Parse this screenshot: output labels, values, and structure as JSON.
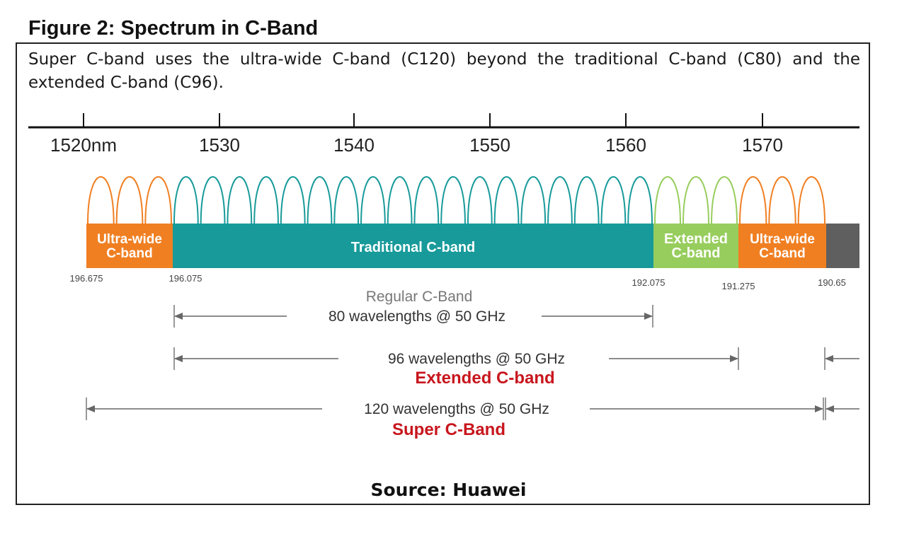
{
  "figure": {
    "title": "Figure 2: Spectrum in C-Band",
    "caption": "Super C-band uses the ultra-wide C-band (C120) beyond the traditional C-band (C80) and the extended C-band (C96).",
    "source": "Source: Huawei"
  },
  "colors": {
    "ultra_wide": "#f07f22",
    "traditional": "#189a9a",
    "extended": "#97cd5d",
    "guard": "#5f5f5f",
    "accent_red": "#c8161d"
  },
  "wavelength_axis": {
    "tick_labels": [
      "1520nm",
      "1530",
      "1540",
      "1550",
      "1560",
      "1570"
    ]
  },
  "bands": [
    {
      "label_lines": [
        "Ultra-wide",
        "C-band"
      ],
      "color_key": "ultra_wide",
      "channel_arcs": 3
    },
    {
      "label_lines": [
        "Traditional C-band"
      ],
      "color_key": "traditional",
      "channel_arcs": 18
    },
    {
      "label_lines": [
        "Extended",
        "C-band"
      ],
      "color_key": "extended",
      "channel_arcs": 3
    },
    {
      "label_lines": [
        "Ultra-wide",
        "C-band"
      ],
      "color_key": "ultra_wide",
      "channel_arcs": 3
    },
    {
      "label_lines": [],
      "color_key": "guard",
      "channel_arcs": 0
    }
  ],
  "frequency_labels": [
    "196.675",
    "196.075",
    "192.075",
    "191.275",
    "190.65"
  ],
  "spans": [
    {
      "sub": "Regular C-Band",
      "label": "80 wavelengths @ 50 GHz",
      "title": ""
    },
    {
      "sub": "",
      "label": "96 wavelengths @ 50 GHz",
      "title": "Extended C-band"
    },
    {
      "sub": "",
      "label": "120 wavelengths @ 50 GHz",
      "title": "Super C-Band"
    }
  ]
}
